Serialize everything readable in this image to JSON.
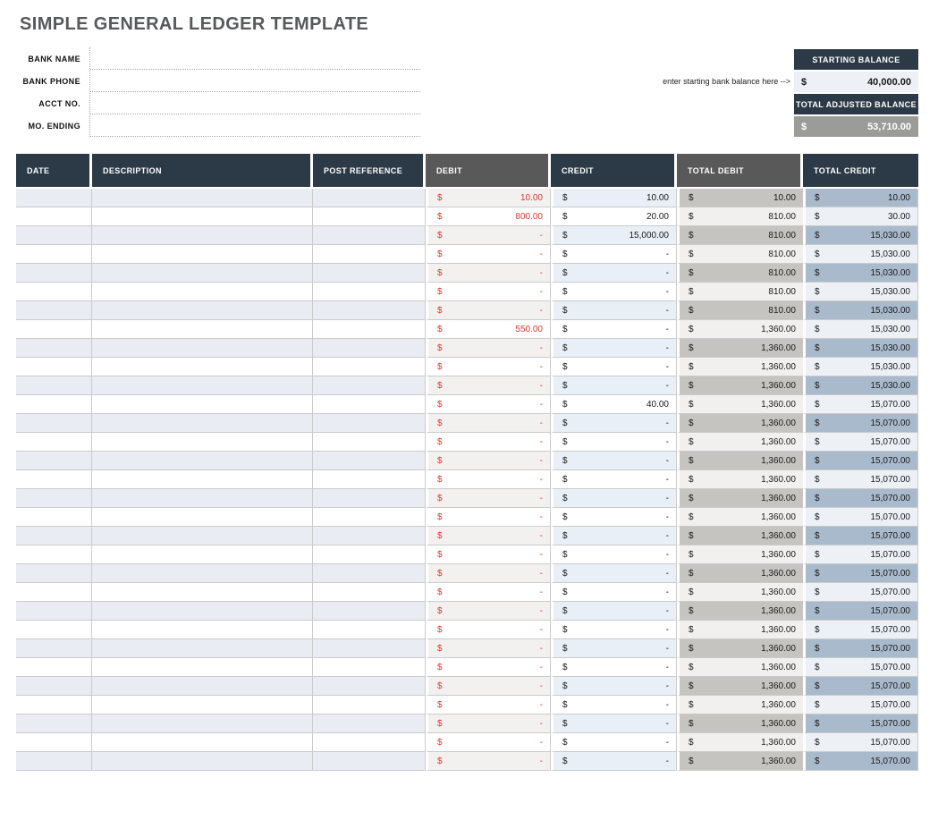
{
  "page": {
    "title": "SIMPLE GENERAL LEDGER TEMPLATE"
  },
  "form": {
    "fields": [
      {
        "label": "BANK NAME",
        "value": ""
      },
      {
        "label": "BANK PHONE",
        "value": ""
      },
      {
        "label": "ACCT NO.",
        "value": ""
      },
      {
        "label": "MO. ENDING",
        "value": ""
      }
    ]
  },
  "balance_panel": {
    "helper_text": "enter starting bank balance here -->",
    "starting_balance_label": "STARTING BALANCE",
    "starting_balance_currency": "$",
    "starting_balance_value": "40,000.00",
    "adjusted_balance_label": "TOTAL ADJUSTED BALANCE",
    "adjusted_balance_currency": "$",
    "adjusted_balance_value": "53,710.00"
  },
  "ledger_table": {
    "columns": [
      "DATE",
      "DESCRIPTION",
      "POST REFERENCE",
      "DEBIT",
      "CREDIT",
      "TOTAL DEBIT",
      "TOTAL CREDIT"
    ],
    "currency_symbol": "$",
    "rows": [
      {
        "date": "",
        "description": "",
        "post_reference": "",
        "debit": "10.00",
        "credit": "10.00",
        "total_debit": "10.00",
        "total_credit": "10.00"
      },
      {
        "date": "",
        "description": "",
        "post_reference": "",
        "debit": "800.00",
        "credit": "20.00",
        "total_debit": "810.00",
        "total_credit": "30.00"
      },
      {
        "date": "",
        "description": "",
        "post_reference": "",
        "debit": "-",
        "credit": "15,000.00",
        "total_debit": "810.00",
        "total_credit": "15,030.00"
      },
      {
        "date": "",
        "description": "",
        "post_reference": "",
        "debit": "-",
        "credit": "-",
        "total_debit": "810.00",
        "total_credit": "15,030.00"
      },
      {
        "date": "",
        "description": "",
        "post_reference": "",
        "debit": "-",
        "credit": "-",
        "total_debit": "810.00",
        "total_credit": "15,030.00"
      },
      {
        "date": "",
        "description": "",
        "post_reference": "",
        "debit": "-",
        "credit": "-",
        "total_debit": "810.00",
        "total_credit": "15,030.00"
      },
      {
        "date": "",
        "description": "",
        "post_reference": "",
        "debit": "-",
        "credit": "-",
        "total_debit": "810.00",
        "total_credit": "15,030.00"
      },
      {
        "date": "",
        "description": "",
        "post_reference": "",
        "debit": "550.00",
        "credit": "-",
        "total_debit": "1,360.00",
        "total_credit": "15,030.00"
      },
      {
        "date": "",
        "description": "",
        "post_reference": "",
        "debit": "-",
        "credit": "-",
        "total_debit": "1,360.00",
        "total_credit": "15,030.00"
      },
      {
        "date": "",
        "description": "",
        "post_reference": "",
        "debit": "-",
        "credit": "-",
        "total_debit": "1,360.00",
        "total_credit": "15,030.00"
      },
      {
        "date": "",
        "description": "",
        "post_reference": "",
        "debit": "-",
        "credit": "-",
        "total_debit": "1,360.00",
        "total_credit": "15,030.00"
      },
      {
        "date": "",
        "description": "",
        "post_reference": "",
        "debit": "-",
        "credit": "40.00",
        "total_debit": "1,360.00",
        "total_credit": "15,070.00"
      },
      {
        "date": "",
        "description": "",
        "post_reference": "",
        "debit": "-",
        "credit": "-",
        "total_debit": "1,360.00",
        "total_credit": "15,070.00"
      },
      {
        "date": "",
        "description": "",
        "post_reference": "",
        "debit": "-",
        "credit": "-",
        "total_debit": "1,360.00",
        "total_credit": "15,070.00"
      },
      {
        "date": "",
        "description": "",
        "post_reference": "",
        "debit": "-",
        "credit": "-",
        "total_debit": "1,360.00",
        "total_credit": "15,070.00"
      },
      {
        "date": "",
        "description": "",
        "post_reference": "",
        "debit": "-",
        "credit": "-",
        "total_debit": "1,360.00",
        "total_credit": "15,070.00"
      },
      {
        "date": "",
        "description": "",
        "post_reference": "",
        "debit": "-",
        "credit": "-",
        "total_debit": "1,360.00",
        "total_credit": "15,070.00"
      },
      {
        "date": "",
        "description": "",
        "post_reference": "",
        "debit": "-",
        "credit": "-",
        "total_debit": "1,360.00",
        "total_credit": "15,070.00"
      },
      {
        "date": "",
        "description": "",
        "post_reference": "",
        "debit": "-",
        "credit": "-",
        "total_debit": "1,360.00",
        "total_credit": "15,070.00"
      },
      {
        "date": "",
        "description": "",
        "post_reference": "",
        "debit": "-",
        "credit": "-",
        "total_debit": "1,360.00",
        "total_credit": "15,070.00"
      },
      {
        "date": "",
        "description": "",
        "post_reference": "",
        "debit": "-",
        "credit": "-",
        "total_debit": "1,360.00",
        "total_credit": "15,070.00"
      },
      {
        "date": "",
        "description": "",
        "post_reference": "",
        "debit": "-",
        "credit": "-",
        "total_debit": "1,360.00",
        "total_credit": "15,070.00"
      },
      {
        "date": "",
        "description": "",
        "post_reference": "",
        "debit": "-",
        "credit": "-",
        "total_debit": "1,360.00",
        "total_credit": "15,070.00"
      },
      {
        "date": "",
        "description": "",
        "post_reference": "",
        "debit": "-",
        "credit": "-",
        "total_debit": "1,360.00",
        "total_credit": "15,070.00"
      },
      {
        "date": "",
        "description": "",
        "post_reference": "",
        "debit": "-",
        "credit": "-",
        "total_debit": "1,360.00",
        "total_credit": "15,070.00"
      },
      {
        "date": "",
        "description": "",
        "post_reference": "",
        "debit": "-",
        "credit": "-",
        "total_debit": "1,360.00",
        "total_credit": "15,070.00"
      },
      {
        "date": "",
        "description": "",
        "post_reference": "",
        "debit": "-",
        "credit": "-",
        "total_debit": "1,360.00",
        "total_credit": "15,070.00"
      },
      {
        "date": "",
        "description": "",
        "post_reference": "",
        "debit": "-",
        "credit": "-",
        "total_debit": "1,360.00",
        "total_credit": "15,070.00"
      },
      {
        "date": "",
        "description": "",
        "post_reference": "",
        "debit": "-",
        "credit": "-",
        "total_debit": "1,360.00",
        "total_credit": "15,070.00"
      },
      {
        "date": "",
        "description": "",
        "post_reference": "",
        "debit": "-",
        "credit": "-",
        "total_debit": "1,360.00",
        "total_credit": "15,070.00"
      },
      {
        "date": "",
        "description": "",
        "post_reference": "",
        "debit": "-",
        "credit": "-",
        "total_debit": "1,360.00",
        "total_credit": "15,070.00"
      }
    ]
  },
  "colors": {
    "header_navy": "#2c3a48",
    "header_gray": "#595959",
    "debit_red": "#dd3a2e",
    "row_tint": "#e9ecf2",
    "debit_tint": "#f2f1ef",
    "credit_tint": "#e9eff6",
    "total_debit_tint": "#c6c4c1",
    "total_debit_light": "#f2f0ee",
    "total_credit_tint": "#a9bacd",
    "total_credit_light": "#edf1f6",
    "grid_border": "#cbcbcb",
    "balance_value_bg": "#edf0f5",
    "balance_gray_bg": "#9b9b9a"
  }
}
